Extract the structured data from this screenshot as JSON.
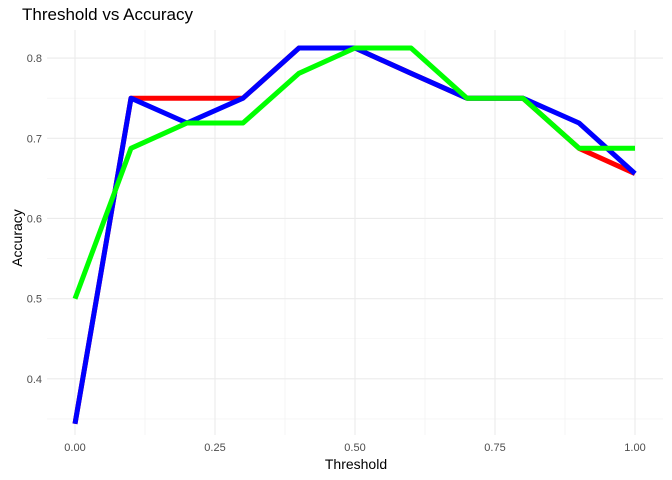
{
  "chart_data": {
    "type": "line",
    "title": "Threshold vs Accuracy",
    "xlabel": "Threshold",
    "ylabel": "Accuracy",
    "xlim": [
      -0.05,
      1.05
    ],
    "ylim": [
      0.33,
      0.835
    ],
    "x_ticks": [
      0.0,
      0.25,
      0.5,
      0.75,
      1.0
    ],
    "x_tick_labels": [
      "0.00",
      "0.25",
      "0.50",
      "0.75",
      "1.00"
    ],
    "y_ticks": [
      0.4,
      0.5,
      0.6,
      0.7,
      0.8
    ],
    "y_tick_labels": [
      "0.4",
      "0.5",
      "0.6",
      "0.7",
      "0.8"
    ],
    "grid": true,
    "legend": "none",
    "x": [
      0.0,
      0.1,
      0.2,
      0.3,
      0.4,
      0.5,
      0.6,
      0.7,
      0.8,
      0.9,
      1.0
    ],
    "series": [
      {
        "color": "#ff0000",
        "values": [
          0.344,
          0.75,
          0.75,
          0.75,
          0.8125,
          0.8125,
          0.781,
          0.75,
          0.75,
          0.6875,
          0.656
        ]
      },
      {
        "color": "#0000ff",
        "values": [
          0.344,
          0.75,
          0.719,
          0.75,
          0.8125,
          0.8125,
          0.781,
          0.75,
          0.75,
          0.719,
          0.656
        ]
      },
      {
        "color": "#00ff00",
        "values": [
          0.5,
          0.6875,
          0.719,
          0.719,
          0.781,
          0.8125,
          0.8125,
          0.75,
          0.75,
          0.6875,
          0.6875
        ]
      }
    ]
  }
}
